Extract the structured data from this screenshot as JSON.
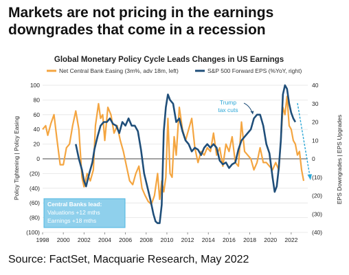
{
  "headline": "Markets are not pricing in the earnings downgrades that come in a recession",
  "source": "Source: FactSet, Macquarie Research, May 2022",
  "colors": {
    "orange": "#f4a540",
    "blue": "#1f4e79",
    "annot": "#2aa6d6",
    "box": "#8fd0ec"
  },
  "chart_data": {
    "type": "line",
    "title": "Global Monetary Policy Cycle Leads Changes in US Earnings",
    "xlim": [
      1998,
      2023.6
    ],
    "x_ticks": [
      "1998",
      "2000",
      "2002",
      "2004",
      "2006",
      "2008",
      "2010",
      "2012",
      "2014",
      "2016",
      "2018",
      "2020",
      "2022"
    ],
    "left_axis": {
      "label_top": "Policy Easing",
      "label_bottom": "Policy Tightening",
      "divider": "|",
      "ylim": [
        -100,
        100
      ],
      "ticks": [
        "100",
        "80",
        "60",
        "40",
        "20",
        "0",
        "(20)",
        "(40)",
        "(60)",
        "(80)",
        "(100)"
      ]
    },
    "right_axis": {
      "label_top": "EPS Upgrades",
      "label_bottom": "EPS Downgrades",
      "divider": "|",
      "ylim": [
        -40,
        40
      ],
      "ticks": [
        "40",
        "30",
        "20",
        "10",
        "0",
        "(10)",
        "(20)",
        "(30)",
        "(40)"
      ]
    },
    "series": [
      {
        "name": "Net Central Bank Easing (3m%, adv 18m, left)",
        "axis": "left",
        "color": "#f4a540",
        "x": [
          1998,
          1998.3,
          1998.5,
          1998.8,
          1999.1,
          1999.4,
          1999.7,
          2000.0,
          2000.3,
          2000.6,
          2000.9,
          2001.2,
          2001.5,
          2001.8,
          2002.0,
          2002.3,
          2002.6,
          2002.9,
          2003.1,
          2003.4,
          2003.6,
          2003.8,
          2004.0,
          2004.3,
          2004.6,
          2004.9,
          2005.2,
          2005.5,
          2005.8,
          2006.1,
          2006.4,
          2006.7,
          2007.0,
          2007.3,
          2007.6,
          2007.9,
          2008.2,
          2008.5,
          2008.8,
          2009.1,
          2009.3,
          2009.5,
          2009.7,
          2009.9,
          2010.1,
          2010.3,
          2010.5,
          2010.7,
          2010.9,
          2011.2,
          2011.5,
          2011.8,
          2012.1,
          2012.4,
          2012.7,
          2013.0,
          2013.3,
          2013.6,
          2013.9,
          2014.2,
          2014.5,
          2014.8,
          2015.1,
          2015.4,
          2015.7,
          2016.0,
          2016.3,
          2016.6,
          2016.9,
          2017.2,
          2017.5,
          2017.8,
          2018.1,
          2018.4,
          2018.7,
          2019.0,
          2019.3,
          2019.6,
          2019.9,
          2020.2,
          2020.5,
          2020.8,
          2021.0,
          2021.2,
          2021.4,
          2021.6,
          2021.8,
          2022.0,
          2022.2,
          2022.4,
          2022.6,
          2022.8,
          2023.0,
          2023.2
        ],
        "values": [
          40,
          45,
          32,
          48,
          60,
          25,
          -8,
          -8,
          15,
          20,
          45,
          65,
          40,
          -25,
          -38,
          -20,
          -30,
          -15,
          45,
          75,
          55,
          60,
          25,
          70,
          60,
          35,
          45,
          25,
          10,
          -10,
          -30,
          -35,
          -20,
          -10,
          -40,
          -50,
          -58,
          -62,
          -50,
          -20,
          -55,
          -30,
          -45,
          -25,
          55,
          -20,
          -25,
          30,
          5,
          70,
          40,
          25,
          40,
          55,
          15,
          -5,
          10,
          5,
          15,
          10,
          35,
          5,
          15,
          -10,
          20,
          10,
          30,
          -5,
          -10,
          50,
          10,
          5,
          0,
          -15,
          -5,
          15,
          -5,
          -5,
          -10,
          -15,
          -5,
          -15,
          25,
          70,
          60,
          85,
          45,
          40,
          25,
          20,
          5,
          10,
          -15,
          -30
        ]
      },
      {
        "name": "S&P 500 Forward EPS (%YoY, right)",
        "axis": "right",
        "color": "#1f4e79",
        "x": [
          2001.2,
          2001.5,
          2001.8,
          2002.0,
          2002.2,
          2002.5,
          2002.8,
          2003.0,
          2003.3,
          2003.6,
          2003.9,
          2004.2,
          2004.5,
          2004.8,
          2005.1,
          2005.4,
          2005.7,
          2006.0,
          2006.3,
          2006.6,
          2006.9,
          2007.2,
          2007.5,
          2007.8,
          2008.1,
          2008.4,
          2008.7,
          2008.9,
          2009.1,
          2009.3,
          2009.5,
          2009.7,
          2009.9,
          2010.1,
          2010.3,
          2010.6,
          2010.9,
          2011.2,
          2011.5,
          2011.8,
          2012.1,
          2012.4,
          2012.7,
          2013.0,
          2013.3,
          2013.6,
          2013.9,
          2014.2,
          2014.5,
          2014.8,
          2015.1,
          2015.4,
          2015.7,
          2016.0,
          2016.3,
          2016.6,
          2016.9,
          2017.2,
          2017.5,
          2017.8,
          2018.1,
          2018.4,
          2018.7,
          2019.0,
          2019.3,
          2019.6,
          2019.9,
          2020.2,
          2020.4,
          2020.6,
          2020.8,
          2021.0,
          2021.2,
          2021.4,
          2021.6,
          2021.8,
          2022.0,
          2022.2,
          2022.4
        ],
        "values": [
          8,
          0,
          -6,
          -12,
          -15,
          -8,
          -2,
          5,
          12,
          18,
          20,
          20,
          22,
          19,
          18,
          14,
          20,
          18,
          22,
          18,
          18,
          15,
          5,
          -8,
          -15,
          -22,
          -30,
          -34,
          -35,
          -35,
          -25,
          15,
          28,
          35,
          32,
          30,
          20,
          22,
          15,
          10,
          8,
          4,
          6,
          5,
          2,
          6,
          8,
          6,
          8,
          6,
          -1,
          -3,
          -2,
          -5,
          -3,
          -2,
          5,
          10,
          12,
          14,
          16,
          22,
          24,
          24,
          18,
          8,
          3,
          -10,
          -18,
          -15,
          -5,
          10,
          35,
          40,
          38,
          30,
          25,
          22,
          20
        ]
      }
    ],
    "annotations": [
      {
        "text_lines": [
          "Trump",
          "tax cuts"
        ],
        "x": 2017.5,
        "y_right": 30
      },
      {
        "text_lines": [
          "Central Banks lead:",
          "Valuations +12 mths",
          "Earnings +18 mths"
        ]
      }
    ]
  }
}
